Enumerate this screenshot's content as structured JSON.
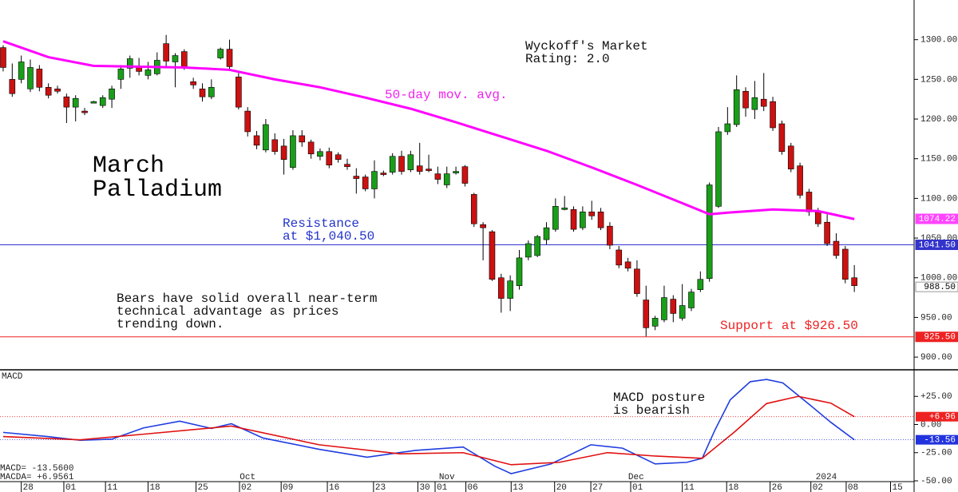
{
  "chart_data": [
    {
      "type": "candlestick",
      "title": [
        "March",
        "Palladium"
      ],
      "annotations": {
        "rating": [
          "Wyckoff's Market",
          "Rating: 2.0"
        ],
        "resistance": [
          "Resistance",
          "at $1,040.50"
        ],
        "support": "Support at $926.50",
        "commentary": [
          "Bears have solid overall near-term",
          "technical advantage as prices",
          "trending down."
        ]
      },
      "xlim": [
        -0.35,
        100.6
      ],
      "ylim": [
        884,
        1350
      ],
      "yticks": [
        {
          "value": 900,
          "label": "900.00"
        },
        {
          "value": 950,
          "label": "950.00"
        },
        {
          "value": 1000,
          "label": "1000.00"
        },
        {
          "value": 1050,
          "label": "1050.00"
        },
        {
          "value": 1100,
          "label": "1100.00"
        },
        {
          "value": 1150,
          "label": "1150.00"
        },
        {
          "value": 1200,
          "label": "1200.00"
        },
        {
          "value": 1250,
          "label": "1250.00"
        },
        {
          "value": 1300,
          "label": "1300.00"
        }
      ],
      "up_color": "#1a9e1a",
      "down_color": "#cc1111",
      "open": [
        1290,
        1250,
        1250,
        1238,
        1263,
        1240,
        1238,
        1228,
        1215,
        1210,
        1222,
        1217,
        1225,
        1250,
        1264,
        1265,
        1255,
        1257,
        1295,
        1272,
        1285,
        1247,
        1238,
        1228,
        1277,
        1288,
        1253,
        1210,
        1179,
        1161,
        1174,
        1166,
        1139,
        1179,
        1171,
        1153,
        1159,
        1155,
        1143,
        1128,
        1127,
        1112,
        1132,
        1133,
        1153,
        1136,
        1141,
        1137,
        1131,
        1117,
        1134,
        1140,
        1105,
        1067,
        1058,
        1000,
        974,
        990,
        1026,
        1028,
        1048,
        1061,
        1088,
        1086,
        1063,
        1083,
        1083,
        1065,
        1035,
        1020,
        1011,
        972,
        939,
        947,
        973,
        949,
        962,
        985,
        999,
        1090,
        1184,
        1193,
        1235,
        1212,
        1225,
        1222,
        1194,
        1166,
        1141,
        1108,
        1083,
        1070,
        1046,
        1036,
        1000
      ],
      "high": [
        1293,
        1270,
        1280,
        1275,
        1268,
        1245,
        1242,
        1232,
        1230,
        1214,
        1223,
        1230,
        1242,
        1268,
        1280,
        1277,
        1272,
        1284,
        1306,
        1283,
        1288,
        1252,
        1245,
        1250,
        1290,
        1300,
        1258,
        1215,
        1185,
        1200,
        1182,
        1175,
        1186,
        1186,
        1174,
        1163,
        1164,
        1158,
        1150,
        1138,
        1130,
        1148,
        1135,
        1157,
        1160,
        1160,
        1170,
        1155,
        1140,
        1140,
        1140,
        1142,
        1107,
        1070,
        1060,
        1005,
        1003,
        1035,
        1047,
        1054,
        1070,
        1100,
        1103,
        1090,
        1090,
        1097,
        1088,
        1070,
        1040,
        1025,
        1022,
        990,
        952,
        990,
        978,
        992,
        986,
        1008,
        1120,
        1190,
        1215,
        1255,
        1240,
        1248,
        1258,
        1228,
        1198,
        1170,
        1145,
        1112,
        1088,
        1080,
        1056,
        1040,
        1016
      ],
      "low": [
        1260,
        1228,
        1245,
        1234,
        1235,
        1226,
        1232,
        1195,
        1197,
        1205,
        1221,
        1214,
        1214,
        1238,
        1252,
        1255,
        1250,
        1255,
        1265,
        1240,
        1262,
        1238,
        1222,
        1225,
        1275,
        1262,
        1212,
        1178,
        1162,
        1158,
        1155,
        1130,
        1136,
        1165,
        1150,
        1148,
        1138,
        1145,
        1136,
        1106,
        1109,
        1100,
        1128,
        1130,
        1130,
        1133,
        1130,
        1133,
        1118,
        1113,
        1130,
        1115,
        1064,
        1022,
        996,
        956,
        958,
        985,
        1022,
        1026,
        1042,
        1058,
        1085,
        1058,
        1060,
        1073,
        1060,
        1036,
        1012,
        1008,
        976,
        926,
        934,
        944,
        944,
        946,
        958,
        982,
        995,
        1088,
        1180,
        1190,
        1203,
        1200,
        1210,
        1185,
        1155,
        1133,
        1100,
        1078,
        1064,
        1040,
        1024,
        993,
        982
      ],
      "close": [
        1265,
        1232,
        1272,
        1265,
        1240,
        1230,
        1235,
        1215,
        1226,
        1208,
        1222,
        1227,
        1238,
        1263,
        1276,
        1260,
        1262,
        1274,
        1273,
        1280,
        1265,
        1243,
        1228,
        1240,
        1288,
        1266,
        1215,
        1184,
        1167,
        1193,
        1159,
        1149,
        1179,
        1171,
        1156,
        1159,
        1142,
        1149,
        1140,
        1125,
        1112,
        1134,
        1131,
        1153,
        1134,
        1155,
        1134,
        1136,
        1124,
        1131,
        1134,
        1119,
        1068,
        1063,
        998,
        974,
        996,
        1025,
        1043,
        1052,
        1063,
        1090,
        1088,
        1061,
        1083,
        1078,
        1063,
        1041,
        1016,
        1012,
        980,
        937,
        949,
        975,
        955,
        965,
        982,
        998,
        1117,
        1184,
        1194,
        1237,
        1214,
        1227,
        1216,
        1189,
        1159,
        1137,
        1104,
        1083,
        1068,
        1043,
        1028,
        998,
        990
      ],
      "moving_average": {
        "name": "50-day mov. avg.",
        "color": "#ff00ff",
        "x": [
          0,
          5,
          10,
          15,
          20,
          25,
          30,
          35,
          40,
          45,
          50,
          55,
          60,
          65,
          70,
          75,
          78,
          80,
          85,
          90,
          94
        ],
        "values": [
          1298,
          1278,
          1267,
          1266,
          1265,
          1262,
          1250,
          1240,
          1227,
          1213,
          1196,
          1178,
          1160,
          1139,
          1117,
          1094,
          1080,
          1082,
          1086,
          1084,
          1074
        ]
      },
      "price_labels": [
        {
          "value": 1074.22,
          "label": "1074.22",
          "color": "#ff44ff",
          "text_color": "#ffffff"
        },
        {
          "value": 1041.5,
          "label": "1041.50",
          "color": "#3333cc",
          "text_color": "#ffffff",
          "line": true
        },
        {
          "value": 988.5,
          "label": "988.50",
          "color": "#ffffff",
          "text_color": "#000000"
        },
        {
          "value": 925.5,
          "label": "925.50",
          "color": "#ee2222",
          "text_color": "#ffffff",
          "line": true
        }
      ]
    },
    {
      "type": "line",
      "label": "MACD",
      "readouts": [
        "MACD= -13.5600",
        "MACDA= +6.9561"
      ],
      "annotation": [
        "MACD posture",
        "is bearish"
      ],
      "xlim": [
        -0.35,
        100.6
      ],
      "ylim": [
        -50,
        48.6
      ],
      "yticks": [
        {
          "value": 25,
          "label": "+25.00"
        },
        {
          "value": 0,
          "label": "0.00"
        },
        {
          "value": -25,
          "label": "-25.00"
        },
        {
          "value": -50,
          "label": "-50.00"
        }
      ],
      "xticks": [
        {
          "value": 2.0,
          "label": "28"
        },
        {
          "value": 6.7,
          "label": "01"
        },
        {
          "value": 11.3,
          "label": "11"
        },
        {
          "value": 16.0,
          "label": "18"
        },
        {
          "value": 21.3,
          "label": "25"
        },
        {
          "value": 26.1,
          "label": "02"
        },
        {
          "value": 30.7,
          "label": "09"
        },
        {
          "value": 35.8,
          "label": "16"
        },
        {
          "value": 40.9,
          "label": "23"
        },
        {
          "value": 45.8,
          "label": "30"
        },
        {
          "value": 47.7,
          "label": "01"
        },
        {
          "value": 51.1,
          "label": "06"
        },
        {
          "value": 56.1,
          "label": "13"
        },
        {
          "value": 60.9,
          "label": "20"
        },
        {
          "value": 64.9,
          "label": "27"
        },
        {
          "value": 69.3,
          "label": "01"
        },
        {
          "value": 75.0,
          "label": "11"
        },
        {
          "value": 79.9,
          "label": "18"
        },
        {
          "value": 84.7,
          "label": "26"
        },
        {
          "value": 89.2,
          "label": "02"
        },
        {
          "value": 93.1,
          "label": "08"
        },
        {
          "value": 98.0,
          "label": "15"
        }
      ],
      "month_labels": [
        {
          "value": 27.0,
          "label": "Oct"
        },
        {
          "value": 49.0,
          "label": "Nov"
        },
        {
          "value": 69.9,
          "label": "Dec"
        },
        {
          "value": 90.9,
          "label": "2024"
        }
      ],
      "series": [
        {
          "name": "MACD",
          "color": "#1f3de0",
          "x": [
            0,
            4.9,
            8.5,
            12,
            15.5,
            19.5,
            23,
            25.2,
            28.7,
            34.9,
            40.2,
            45.5,
            50.8,
            54.3,
            56.1,
            60.5,
            64.9,
            68.4,
            72,
            75.5,
            77.2,
            78.6,
            80.3,
            82.5,
            84.3,
            86.1,
            88.7,
            91.4,
            94
          ],
          "values": [
            -7,
            -10.7,
            -14,
            -13,
            -3,
            3,
            -3.5,
            0.7,
            -12,
            -22,
            -29,
            -23,
            -20,
            -37,
            -43.6,
            -35,
            -18,
            -21,
            -35,
            -33.6,
            -30,
            -5,
            22,
            38,
            40,
            37,
            20,
            2,
            -13.56
          ]
        },
        {
          "name": "MACDA",
          "color": "#e01010",
          "x": [
            0,
            8.5,
            15.5,
            25.2,
            34.9,
            43.8,
            50.8,
            56.1,
            61.4,
            66.7,
            72,
            77.2,
            80.8,
            84.3,
            87.8,
            91.4,
            94
          ],
          "values": [
            -10.7,
            -13.6,
            -8.6,
            -1.4,
            -18,
            -26,
            -25,
            -35.7,
            -33.6,
            -25,
            -28,
            -30,
            -6.4,
            18.6,
            25,
            19,
            6.96
          ]
        }
      ],
      "value_boxes": [
        {
          "value": 6.96,
          "label": "+6.96",
          "color": "#ee2222"
        },
        {
          "value": -13.56,
          "label": "-13.56",
          "color": "#2233dd"
        }
      ]
    }
  ]
}
